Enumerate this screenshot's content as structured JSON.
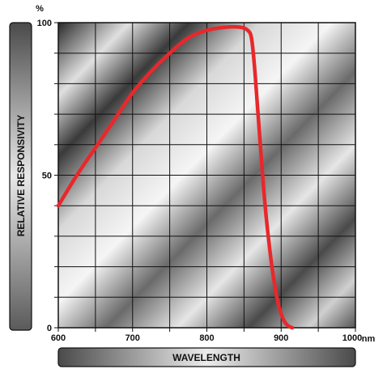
{
  "chart_data": {
    "type": "line",
    "title": "",
    "xlabel": "WAVELENGTH",
    "ylabel": "RELATIVE RESPONSIVITY",
    "y_unit": "%",
    "x_unit": "nm",
    "xlim": [
      600,
      1000
    ],
    "ylim": [
      0,
      100
    ],
    "x_ticks": [
      600,
      700,
      800,
      900,
      1000
    ],
    "y_ticks": [
      0,
      50,
      100
    ],
    "grid": true,
    "series": [
      {
        "color": "#e8282b",
        "x": [
          600,
          625,
          650,
          675,
          700,
          725,
          750,
          775,
          800,
          825,
          845,
          855,
          860,
          864,
          868,
          872,
          876,
          880,
          885,
          890,
          895,
          900,
          905,
          910,
          915
        ],
        "y": [
          40,
          50,
          59,
          68,
          77,
          84,
          90,
          95,
          97.5,
          98.5,
          98.5,
          97.5,
          95,
          86,
          73,
          60,
          47,
          36,
          25,
          16,
          9,
          4.5,
          1.8,
          0.5,
          0
        ]
      }
    ]
  }
}
